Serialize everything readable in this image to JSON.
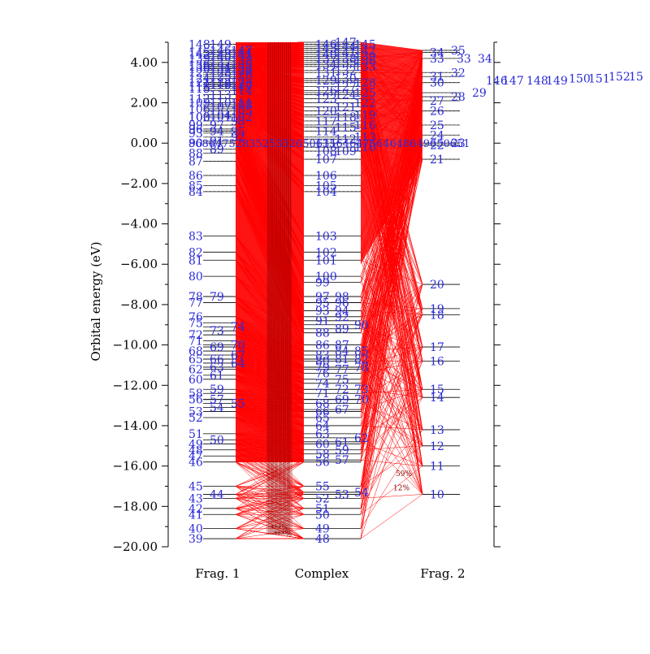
{
  "chart_data": {
    "type": "orbital-correlation-diagram",
    "ylabel": "Orbital energy (eV)",
    "ylim": [
      -20.0,
      5.0
    ],
    "y_ticks": [
      "4.00",
      "2.00",
      "0.00",
      "−2.00",
      "−4.00",
      "−6.00",
      "−8.00",
      "−10.00",
      "−12.00",
      "−14.00",
      "−16.00",
      "−18.00",
      "−20.00"
    ],
    "tick_values": [
      4,
      2,
      0,
      -2,
      -4,
      -6,
      -8,
      -10,
      -12,
      -14,
      -16,
      -18,
      -20
    ],
    "column_labels": {
      "frag1": "Frag. 1",
      "complex": "Complex",
      "frag2": "Frag. 2"
    },
    "frag1_levels": [
      {
        "n": "39",
        "e": -19.6
      },
      {
        "n": "40",
        "e": -19.1
      },
      {
        "n": "41",
        "e": -18.4
      },
      {
        "n": "42",
        "e": -18.1
      },
      {
        "n": "43",
        "e": -17.6
      },
      {
        "n": "44",
        "e": -17.4
      },
      {
        "n": "45",
        "e": -17.0
      },
      {
        "n": "46",
        "e": -15.8
      },
      {
        "n": "47",
        "e": -15.5
      },
      {
        "n": "48",
        "e": -15.2
      },
      {
        "n": "49",
        "e": -14.9
      },
      {
        "n": "50",
        "e": -14.7
      },
      {
        "n": "51",
        "e": -14.4
      },
      {
        "n": "52",
        "e": -13.6
      },
      {
        "n": "53",
        "e": -13.3
      },
      {
        "n": "54",
        "e": -13.1
      },
      {
        "n": "55",
        "e": -12.9
      },
      {
        "n": "56",
        "e": -12.7
      },
      {
        "n": "57",
        "e": -12.7
      },
      {
        "n": "58",
        "e": -12.4
      },
      {
        "n": "59",
        "e": -12.2
      },
      {
        "n": "60",
        "e": -11.7
      },
      {
        "n": "61",
        "e": -11.5
      },
      {
        "n": "62",
        "e": -11.2
      },
      {
        "n": "63",
        "e": -11.1
      },
      {
        "n": "64",
        "e": -10.9
      },
      {
        "n": "65",
        "e": -10.7
      },
      {
        "n": "66",
        "e": -10.7
      },
      {
        "n": "67",
        "e": -10.5
      },
      {
        "n": "68",
        "e": -10.3
      },
      {
        "n": "69",
        "e": -10.1
      },
      {
        "n": "70",
        "e": -10.0
      },
      {
        "n": "71",
        "e": -9.8
      },
      {
        "n": "72",
        "e": -9.5
      },
      {
        "n": "73",
        "e": -9.3
      },
      {
        "n": "74",
        "e": -9.1
      },
      {
        "n": "75",
        "e": -8.9
      },
      {
        "n": "76",
        "e": -8.6
      },
      {
        "n": "77",
        "e": -7.9
      },
      {
        "n": "78",
        "e": -7.6
      },
      {
        "n": "79",
        "e": -7.6
      },
      {
        "n": "80",
        "e": -6.6
      },
      {
        "n": "81",
        "e": -5.8
      },
      {
        "n": "82",
        "e": -5.4
      },
      {
        "n": "83",
        "e": -4.6
      },
      {
        "n": "84",
        "e": -2.4
      },
      {
        "n": "85",
        "e": -2.1
      },
      {
        "n": "86",
        "e": -1.6
      },
      {
        "n": "87",
        "e": -0.9
      },
      {
        "n": "88",
        "e": -0.5
      },
      {
        "n": "89",
        "e": -0.3
      },
      {
        "n": "90",
        "e": 0.0
      },
      {
        "n": "91",
        "e": 0.1
      },
      {
        "n": "92",
        "e": 0.3
      },
      {
        "n": "93",
        "e": 0.5
      },
      {
        "n": "94",
        "e": 0.6
      },
      {
        "n": "95",
        "e": 0.6
      },
      {
        "n": "96",
        "e": 0.7
      },
      {
        "n": "97",
        "e": 0.9
      },
      {
        "n": "98",
        "e": 1.1
      },
      {
        "n": "99",
        "e": 0.9
      },
      {
        "n": "100",
        "e": 1.3
      },
      {
        "n": "101",
        "e": 1.3
      },
      {
        "n": "102",
        "e": 1.3
      },
      {
        "n": "103",
        "e": 1.3
      },
      {
        "n": "104",
        "e": 1.4
      },
      {
        "n": "105",
        "e": 1.6
      },
      {
        "n": "106",
        "e": 1.7
      },
      {
        "n": "107",
        "e": 1.8
      },
      {
        "n": "108",
        "e": 1.9
      },
      {
        "n": "109",
        "e": 2.0
      },
      {
        "n": "110",
        "e": 2.0
      },
      {
        "n": "111",
        "e": 2.0
      },
      {
        "n": "112",
        "e": 2.2
      },
      {
        "n": "113",
        "e": 2.4
      },
      {
        "n": "114",
        "e": 2.6
      },
      {
        "n": "115",
        "e": 2.7
      },
      {
        "n": "116",
        "e": 2.9
      },
      {
        "n": "117",
        "e": 2.8
      },
      {
        "n": "118",
        "e": 2.8
      },
      {
        "n": "119",
        "e": 2.9
      },
      {
        "n": "120",
        "e": 2.9
      },
      {
        "n": "121",
        "e": 3.0
      },
      {
        "n": "122",
        "e": 3.0
      },
      {
        "n": "123",
        "e": 3.0
      },
      {
        "n": "124",
        "e": 3.2
      },
      {
        "n": "125",
        "e": 3.3
      },
      {
        "n": "126",
        "e": 3.4
      },
      {
        "n": "127",
        "e": 3.5
      },
      {
        "n": "128",
        "e": 3.5
      },
      {
        "n": "129",
        "e": 3.6
      },
      {
        "n": "130",
        "e": 3.7
      },
      {
        "n": "131",
        "e": 3.7
      },
      {
        "n": "132",
        "e": 3.7
      },
      {
        "n": "133",
        "e": 3.8
      },
      {
        "n": "134",
        "e": 3.8
      },
      {
        "n": "135",
        "e": 3.9
      },
      {
        "n": "136",
        "e": 3.9
      },
      {
        "n": "137",
        "e": 4.0
      },
      {
        "n": "138",
        "e": 4.1
      },
      {
        "n": "139",
        "e": 4.2
      },
      {
        "n": "140",
        "e": 4.3
      },
      {
        "n": "141",
        "e": 4.4
      },
      {
        "n": "142",
        "e": 4.4
      },
      {
        "n": "143",
        "e": 4.4
      },
      {
        "n": "144",
        "e": 4.5
      },
      {
        "n": "145",
        "e": 4.5
      },
      {
        "n": "146",
        "e": 4.6
      },
      {
        "n": "147",
        "e": 4.6
      },
      {
        "n": "148",
        "e": 4.9
      },
      {
        "n": "149",
        "e": 4.9
      }
    ],
    "complex_levels": [
      {
        "n": "48",
        "e": -19.6
      },
      {
        "n": "49",
        "e": -19.1
      },
      {
        "n": "50",
        "e": -18.4
      },
      {
        "n": "51",
        "e": -18.1
      },
      {
        "n": "52",
        "e": -17.6
      },
      {
        "n": "53",
        "e": -17.4
      },
      {
        "n": "54",
        "e": -17.3
      },
      {
        "n": "55",
        "e": -17.0
      },
      {
        "n": "56",
        "e": -15.8
      },
      {
        "n": "57",
        "e": -15.7
      },
      {
        "n": "58",
        "e": -15.4
      },
      {
        "n": "59",
        "e": -15.2
      },
      {
        "n": "60",
        "e": -14.9
      },
      {
        "n": "61",
        "e": -14.8
      },
      {
        "n": "62",
        "e": -14.6
      },
      {
        "n": "63",
        "e": -14.4
      },
      {
        "n": "64",
        "e": -14.0
      },
      {
        "n": "65",
        "e": -13.6
      },
      {
        "n": "66",
        "e": -13.3
      },
      {
        "n": "67",
        "e": -13.2
      },
      {
        "n": "68",
        "e": -12.9
      },
      {
        "n": "69",
        "e": -12.7
      },
      {
        "n": "70",
        "e": -12.7
      },
      {
        "n": "71",
        "e": -12.4
      },
      {
        "n": "72",
        "e": -12.2
      },
      {
        "n": "73",
        "e": -12.2
      },
      {
        "n": "74",
        "e": -11.9
      },
      {
        "n": "75",
        "e": -11.7
      },
      {
        "n": "76",
        "e": -11.4
      },
      {
        "n": "77",
        "e": -11.2
      },
      {
        "n": "78",
        "e": -11.1
      },
      {
        "n": "79",
        "e": -11.1
      },
      {
        "n": "80",
        "e": -10.8
      },
      {
        "n": "81",
        "e": -10.7
      },
      {
        "n": "82",
        "e": -10.7
      },
      {
        "n": "83",
        "e": -10.5
      },
      {
        "n": "84",
        "e": -10.3
      },
      {
        "n": "85",
        "e": -10.3
      },
      {
        "n": "86",
        "e": -10.0
      },
      {
        "n": "87",
        "e": -10.0
      },
      {
        "n": "88",
        "e": -9.4
      },
      {
        "n": "89",
        "e": -9.2
      },
      {
        "n": "90",
        "e": -9.0
      },
      {
        "n": "91",
        "e": -8.8
      },
      {
        "n": "92",
        "e": -8.6
      },
      {
        "n": "93",
        "e": -8.3
      },
      {
        "n": "94",
        "e": -8.3
      },
      {
        "n": "95",
        "e": -7.9
      },
      {
        "n": "96",
        "e": -7.9
      },
      {
        "n": "97",
        "e": -7.6
      },
      {
        "n": "98",
        "e": -7.6
      },
      {
        "n": "99",
        "e": -6.9
      },
      {
        "n": "100",
        "e": -6.6
      },
      {
        "n": "101",
        "e": -5.8
      },
      {
        "n": "102",
        "e": -5.4
      },
      {
        "n": "103",
        "e": -4.6
      },
      {
        "n": "104",
        "e": -2.4
      },
      {
        "n": "105",
        "e": -2.1
      },
      {
        "n": "106",
        "e": -1.6
      },
      {
        "n": "107",
        "e": -0.8
      },
      {
        "n": "108",
        "e": -0.4
      },
      {
        "n": "109",
        "e": -0.4
      },
      {
        "n": "110",
        "e": -0.2
      },
      {
        "n": "111",
        "e": 0.0
      },
      {
        "n": "112",
        "e": 0.2
      },
      {
        "n": "113",
        "e": 0.3
      },
      {
        "n": "114",
        "e": 0.6
      },
      {
        "n": "115",
        "e": 0.8
      },
      {
        "n": "116",
        "e": 0.9
      },
      {
        "n": "117",
        "e": 1.1
      },
      {
        "n": "118",
        "e": 1.3
      },
      {
        "n": "119",
        "e": 1.4
      },
      {
        "n": "120",
        "e": 1.6
      },
      {
        "n": "121",
        "e": 1.8
      },
      {
        "n": "122",
        "e": 2.0
      },
      {
        "n": "123",
        "e": 2.2
      },
      {
        "n": "124",
        "e": 2.4
      },
      {
        "n": "125",
        "e": 2.5
      },
      {
        "n": "126",
        "e": 2.6
      },
      {
        "n": "127",
        "e": 2.8
      },
      {
        "n": "128",
        "e": 3.0
      },
      {
        "n": "129",
        "e": 3.1
      },
      {
        "n": "130",
        "e": 3.2
      },
      {
        "n": "131",
        "e": 3.5
      },
      {
        "n": "132",
        "e": 3.6
      },
      {
        "n": "133",
        "e": 3.8
      },
      {
        "n": "134",
        "e": 3.9
      },
      {
        "n": "135",
        "e": 4.0
      },
      {
        "n": "136",
        "e": 4.1
      },
      {
        "n": "137",
        "e": 4.2
      },
      {
        "n": "138",
        "e": 4.2
      },
      {
        "n": "139",
        "e": 4.3
      },
      {
        "n": "140",
        "e": 4.4
      },
      {
        "n": "141",
        "e": 4.5
      },
      {
        "n": "142",
        "e": 4.6
      },
      {
        "n": "143",
        "e": 4.7
      },
      {
        "n": "144",
        "e": 4.8
      },
      {
        "n": "145",
        "e": 4.9
      },
      {
        "n": "146",
        "e": 4.9
      },
      {
        "n": "147",
        "e": 5.0
      }
    ],
    "frag2_levels": [
      {
        "n": "10",
        "e": -17.4
      },
      {
        "n": "11",
        "e": -16.0
      },
      {
        "n": "12",
        "e": -15.0
      },
      {
        "n": "13",
        "e": -14.2
      },
      {
        "n": "14",
        "e": -12.6
      },
      {
        "n": "15",
        "e": -12.2
      },
      {
        "n": "16",
        "e": -10.8
      },
      {
        "n": "17",
        "e": -10.1
      },
      {
        "n": "18",
        "e": -8.5
      },
      {
        "n": "19",
        "e": -8.2
      },
      {
        "n": "20",
        "e": -7.0
      },
      {
        "n": "21",
        "e": -0.8
      },
      {
        "n": "22",
        "e": -0.1
      },
      {
        "n": "23",
        "e": 0.0
      },
      {
        "n": "24",
        "e": 0.4
      },
      {
        "n": "25",
        "e": 0.9
      },
      {
        "n": "26",
        "e": 1.6
      },
      {
        "n": "27",
        "e": 2.1
      },
      {
        "n": "28",
        "e": 2.3
      },
      {
        "n": "29",
        "e": 2.5
      },
      {
        "n": "30",
        "e": 3.0
      },
      {
        "n": "31",
        "e": 3.3
      },
      {
        "n": "32",
        "e": 3.5
      },
      {
        "n": "33",
        "e": 4.2
      },
      {
        "n": "34",
        "e": 4.5
      },
      {
        "n": "35",
        "e": 4.6
      }
    ],
    "frag2_right_labels": [
      "33",
      "34",
      "146",
      "147",
      "148",
      "149",
      "150",
      "151",
      "152",
      "15"
    ],
    "row_labels": [
      "86",
      "86",
      "47",
      "52",
      "83",
      "52",
      "53",
      "52",
      "65",
      "06",
      "35",
      "64",
      "64",
      "75",
      "64",
      "64",
      "86",
      "49",
      "65",
      "06",
      "51"
    ],
    "contribution_labels": [
      "59%",
      "12%",
      "***%",
      "***%"
    ]
  }
}
